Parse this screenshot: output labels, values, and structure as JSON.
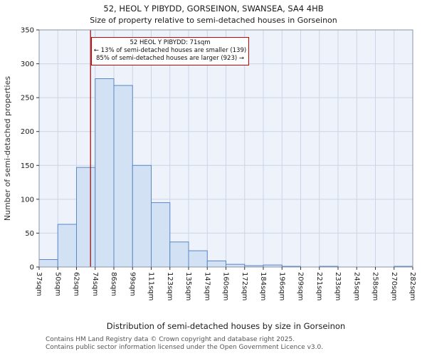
{
  "title": "52, HEOL Y PIBYDD, GORSEINON, SWANSEA, SA4 4HB",
  "subtitle": "Size of property relative to semi-detached houses in Gorseinon",
  "chart_data": {
    "type": "bar",
    "title": "52, HEOL Y PIBYDD, GORSEINON, SWANSEA, SA4 4HB — Size of property relative to semi-detached houses in Gorseinon",
    "xlabel": "Distribution of semi-detached houses by size in Gorseinon",
    "ylabel": "Number of semi-detached properties",
    "categories": [
      "37sqm",
      "50sqm",
      "62sqm",
      "74sqm",
      "86sqm",
      "99sqm",
      "111sqm",
      "123sqm",
      "135sqm",
      "147sqm",
      "160sqm",
      "172sqm",
      "184sqm",
      "196sqm",
      "209sqm",
      "221sqm",
      "233sqm",
      "245sqm",
      "258sqm",
      "270sqm",
      "282sqm"
    ],
    "bin_note": "categories are histogram bin edges; each value is the count of the bin between consecutive edges",
    "values": [
      11,
      63,
      147,
      278,
      268,
      150,
      95,
      37,
      24,
      9,
      4,
      2,
      3,
      1,
      0,
      1,
      0,
      0,
      0,
      1
    ],
    "ylim": [
      0,
      350
    ],
    "yticks": [
      0,
      50,
      100,
      150,
      200,
      250,
      300,
      350
    ],
    "grid": true,
    "legend": "none",
    "marker": {
      "value_sqm": 71,
      "line_color": "#990000"
    },
    "annotation": {
      "line1": "52 HEOL Y PIBYDD: 71sqm",
      "line2": "← 13% of semi-detached houses are smaller (139)",
      "line3": "85% of semi-detached houses are larger (923) →"
    },
    "colors": {
      "bar_fill": "#d3e1f4",
      "bar_edge": "#5b87c5",
      "plot_bg": "#eef2fa",
      "grid": "#ccd5e8",
      "spine": "#8a93a6",
      "tick": "#333333",
      "text": "#1a1a1a"
    }
  },
  "footer": {
    "line1": "Contains HM Land Registry data © Crown copyright and database right 2025.",
    "line2": "Contains public sector information licensed under the Open Government Licence v3.0."
  }
}
